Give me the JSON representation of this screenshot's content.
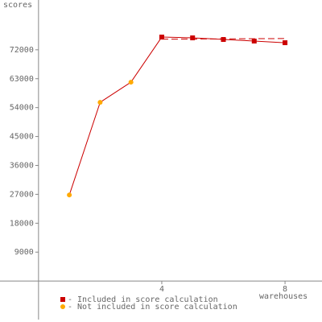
{
  "chart_data": {
    "type": "line",
    "y_label": "scores",
    "x_label": "warehouses",
    "xlim": [
      -1.25,
      9.2
    ],
    "xticks": [
      4,
      8
    ],
    "ylim": [
      -12000,
      87500
    ],
    "yticks": [
      9000,
      18000,
      27000,
      36000,
      45000,
      54000,
      63000,
      72000
    ],
    "line_color": "#cc0000",
    "series": [
      {
        "name": "- Included in score calculation",
        "color": "#cc0000",
        "marker": "square",
        "x": [
          4,
          5,
          6,
          7,
          8
        ],
        "values": [
          75960,
          75710,
          75210,
          74710,
          74200
        ]
      },
      {
        "name": "- Not included in score calculation",
        "color": "#ffaa00",
        "marker": "circle",
        "x": [
          1,
          2,
          3
        ],
        "values": [
          26800,
          55650,
          61920
        ]
      }
    ],
    "reference": {
      "x": [
        4,
        8
      ],
      "values": [
        75300,
        75500
      ],
      "color": "#cc0000"
    }
  }
}
